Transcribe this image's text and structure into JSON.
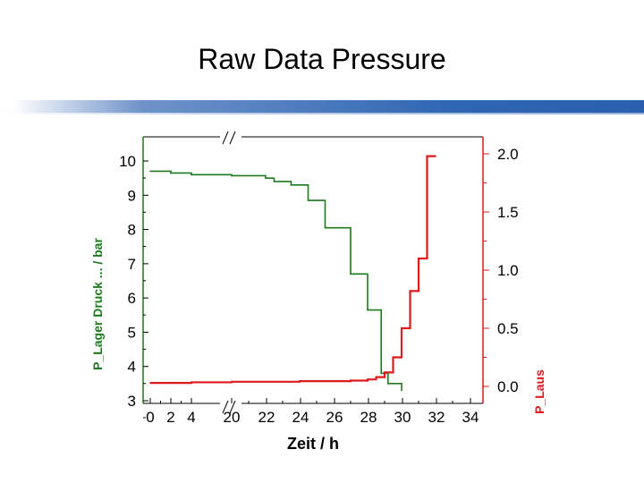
{
  "slide": {
    "title": "Raw Data Pressure"
  },
  "colors": {
    "left_series": "#1e7a1e",
    "right_series": "#e0191b",
    "axis": "#000000",
    "title_rule": "#2f66b3"
  },
  "chart_data": {
    "type": "line",
    "title": "",
    "xlabel": "Zeit / h",
    "ylabel_left": "P_Lager Druck ... / bar",
    "ylabel_right": "P_Laus",
    "x_tick_labels": [
      "0",
      "2",
      "4",
      "20",
      "22",
      "24",
      "26",
      "28",
      "30",
      "32",
      "34"
    ],
    "x_break_between": [
      "4",
      "20"
    ],
    "ylim_left": [
      3,
      10.5
    ],
    "y_left_ticks": [
      3,
      4,
      5,
      6,
      7,
      8,
      9,
      10
    ],
    "ylim_right": [
      -0.05,
      2.05
    ],
    "y_right_ticks": [
      0.0,
      0.5,
      1.0,
      1.5,
      2.0
    ],
    "y_right_tick_labels": [
      "0.0",
      "0.5",
      "1.0",
      "1.5",
      "2.0"
    ],
    "grid": false,
    "legend": "none",
    "series": [
      {
        "axis": "left",
        "color": "#1e7a1e",
        "x": [
          0,
          2,
          4,
          20,
          22,
          22.5,
          23.5,
          24.5,
          25.5,
          27,
          28,
          28.8,
          29.2,
          30
        ],
        "y": [
          9.7,
          9.65,
          9.6,
          9.57,
          9.5,
          9.4,
          9.3,
          8.85,
          8.05,
          6.7,
          5.65,
          3.8,
          3.5,
          3.3
        ]
      },
      {
        "axis": "right",
        "color": "#e0191b",
        "x": [
          0,
          2,
          4,
          20,
          22,
          24,
          26,
          27,
          28,
          28.5,
          29,
          29.5,
          30,
          30.5,
          31,
          31.5,
          32
        ],
        "y": [
          0.03,
          0.03,
          0.035,
          0.04,
          0.04,
          0.045,
          0.045,
          0.05,
          0.06,
          0.08,
          0.12,
          0.25,
          0.5,
          0.82,
          1.1,
          1.98,
          1.98
        ]
      }
    ]
  }
}
